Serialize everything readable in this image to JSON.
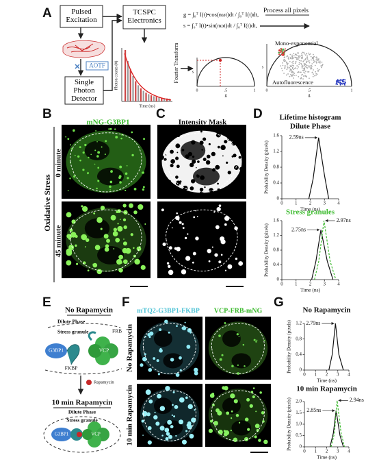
{
  "panel_labels": [
    "A",
    "B",
    "C",
    "D",
    "E",
    "F",
    "G"
  ],
  "panel_a": {
    "pulsed_excitation": "Pulsed Excitation",
    "tcspc": "TCSPC Electronics",
    "aotf": "AOTF",
    "detector": "Single Photon Detector",
    "decay_ylabel": "Photon counts (#)",
    "decay_xlabel": "Time (ns)",
    "fourier": "Fourier Transform",
    "eq_g": "g = ∫₀ᵀ I(t)•cos(nωt)dt / ∫₀ᵀ I(t)dt,",
    "eq_s": "s = ∫₀ᵀ I(t)•sin(nωt)dt / ∫₀ᵀ I(t)dt,",
    "process": "Process all pixels",
    "phasor_ticks": [
      "0",
      ".5",
      "1"
    ],
    "phasor_xlabel": "g",
    "phasor_ylabel": "s",
    "mono": "Mono-exponential",
    "auto": "Autofluorescence"
  },
  "panel_b": {
    "title": "mNG-G3BP1",
    "condition": "Oxidative Stress",
    "times": [
      "0 minute",
      "45 minute"
    ]
  },
  "panel_c": {
    "title": "Intensity Mask"
  },
  "panel_e": {
    "top_title": "No Rapamycin",
    "dilute": "Dilute Phase",
    "granule": "Stress granule",
    "frb": "FRB",
    "g3bp1": "G3BP1",
    "fkbp": "FKBP",
    "vcp": "VCP",
    "rapamycin": "Rapamycin",
    "bottom_title": "10 min Rapamycin"
  },
  "panel_f": {
    "channels": [
      "mTQ2-G3BP1-FKBP",
      "VCP-FRB-mNG"
    ],
    "conditions": [
      "No Rapamycin",
      "10 min Rapamycin"
    ]
  },
  "chart_data": [
    {
      "type": "line",
      "title": "Lifetime histogram",
      "subtitle": "Dilute Phase",
      "title_color": "#111111",
      "xlabel": "Time (ns)",
      "ylabel": "Probability Density (pixels)",
      "xlim": [
        0,
        4
      ],
      "xticks": [
        0,
        1,
        2,
        3,
        4
      ],
      "ylim": [
        0,
        1.6
      ],
      "yticks": [
        0,
        0.4,
        0.8,
        1.2,
        1.6
      ],
      "series": [
        {
          "color": "#111111",
          "dash": false,
          "x": [
            1.9,
            2.2,
            2.59,
            3.0,
            3.3
          ],
          "values": [
            0,
            0.5,
            1.55,
            0.6,
            0
          ],
          "peak_label": "2.59ns"
        }
      ]
    },
    {
      "type": "line",
      "title": "Stress granules",
      "title_color": "#3dbb2f",
      "xlabel": "Time (ns)",
      "ylabel": "Probability Density (pixels)",
      "xlim": [
        0,
        4
      ],
      "xticks": [
        0,
        1,
        2,
        3,
        4
      ],
      "ylim": [
        0,
        1.6
      ],
      "yticks": [
        0,
        0.4,
        0.8,
        1.2,
        1.6
      ],
      "series": [
        {
          "color": "#111111",
          "dash": false,
          "x": [
            2.1,
            2.4,
            2.75,
            3.2,
            3.6
          ],
          "values": [
            0,
            0.5,
            1.35,
            0.5,
            0
          ],
          "peak_label": "2.75ns"
        },
        {
          "color": "#3dbb2f",
          "dash": true,
          "x": [
            2.3,
            2.6,
            2.97,
            3.4,
            3.8
          ],
          "values": [
            0,
            0.5,
            1.6,
            0.5,
            0
          ],
          "peak_label": "2.97ns"
        }
      ]
    },
    {
      "type": "line",
      "title": "No Rapamycin",
      "title_color": "#111111",
      "xlabel": "Time (ns)",
      "ylabel": "Probability Density (pixels)",
      "xlim": [
        0,
        4
      ],
      "xticks": [
        0,
        1,
        2,
        3,
        4
      ],
      "ylim": [
        0,
        1.2
      ],
      "yticks": [
        0,
        0.4,
        0.8,
        1.2
      ],
      "series": [
        {
          "color": "#111111",
          "dash": false,
          "x": [
            2.2,
            2.5,
            2.79,
            3.1,
            3.5
          ],
          "values": [
            0,
            0.4,
            1.2,
            0.4,
            0
          ],
          "peak_label": "2.79ns"
        }
      ]
    },
    {
      "type": "line",
      "title": "10 min Rapamycin",
      "title_color": "#111111",
      "xlabel": "Time (ns)",
      "ylabel": "Probability Density (pixels)",
      "xlim": [
        0,
        4
      ],
      "xticks": [
        0,
        1,
        2,
        3,
        4
      ],
      "ylim": [
        0,
        2.0
      ],
      "yticks": [
        0,
        0.5,
        {
          "value": 1,
          "label": "1.0"
        },
        1.5,
        {
          "value": 2,
          "label": "2.0"
        }
      ],
      "series": [
        {
          "color": "#111111",
          "dash": false,
          "x": [
            2.3,
            2.6,
            2.85,
            3.2,
            3.5
          ],
          "values": [
            0,
            0.6,
            1.6,
            0.5,
            0
          ],
          "peak_label": "2.85ns"
        },
        {
          "color": "#3dbb2f",
          "dash": true,
          "x": [
            2.4,
            2.7,
            2.94,
            3.3,
            3.6
          ],
          "values": [
            0,
            0.6,
            2.05,
            0.6,
            0
          ],
          "peak_label": "2.94ns"
        }
      ]
    }
  ]
}
